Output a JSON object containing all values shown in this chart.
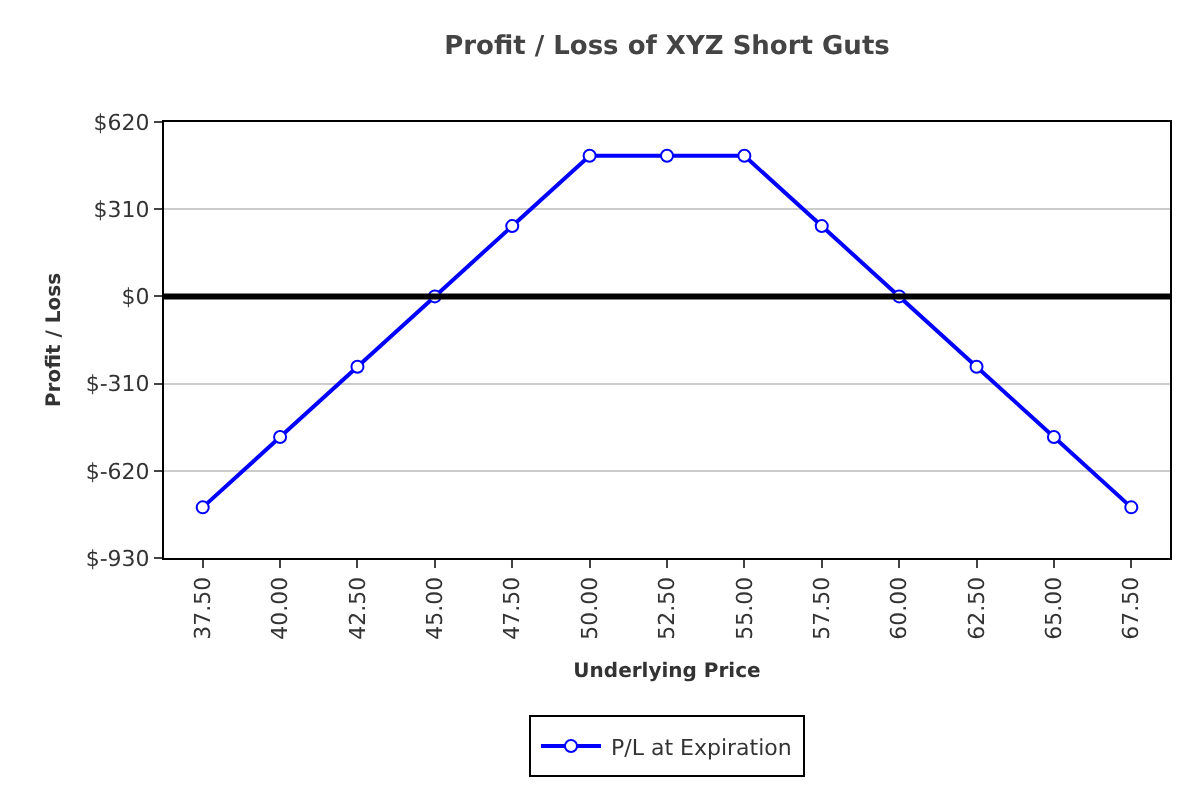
{
  "chart_data": {
    "type": "line",
    "title": "Profit / Loss of XYZ Short Guts",
    "xlabel": "Underlying Price",
    "ylabel": "Profit / Loss",
    "categories": [
      "37.50",
      "40.00",
      "42.50",
      "45.00",
      "47.50",
      "50.00",
      "52.50",
      "55.00",
      "57.50",
      "60.00",
      "62.50",
      "65.00",
      "67.50"
    ],
    "series": [
      {
        "name": "P/L at Expiration",
        "color": "#0000ff",
        "values": [
          -750,
          -500,
          -250,
          0,
          250,
          500,
          500,
          500,
          250,
          0,
          -250,
          -500,
          -750
        ]
      }
    ],
    "ylim": [
      -930,
      620
    ],
    "yticks": [
      {
        "value": -930,
        "label": "$-930"
      },
      {
        "value": -620,
        "label": "$-620"
      },
      {
        "value": -310,
        "label": "$-310"
      },
      {
        "value": 0,
        "label": "$0"
      },
      {
        "value": 310,
        "label": "$310"
      },
      {
        "value": 620,
        "label": "$620"
      }
    ],
    "ref_lines": [
      {
        "axis": "y",
        "value": 0,
        "color": "#000000"
      }
    ],
    "grid": "y",
    "legend": "bottom",
    "marker": "circle",
    "line_style": "solid"
  }
}
